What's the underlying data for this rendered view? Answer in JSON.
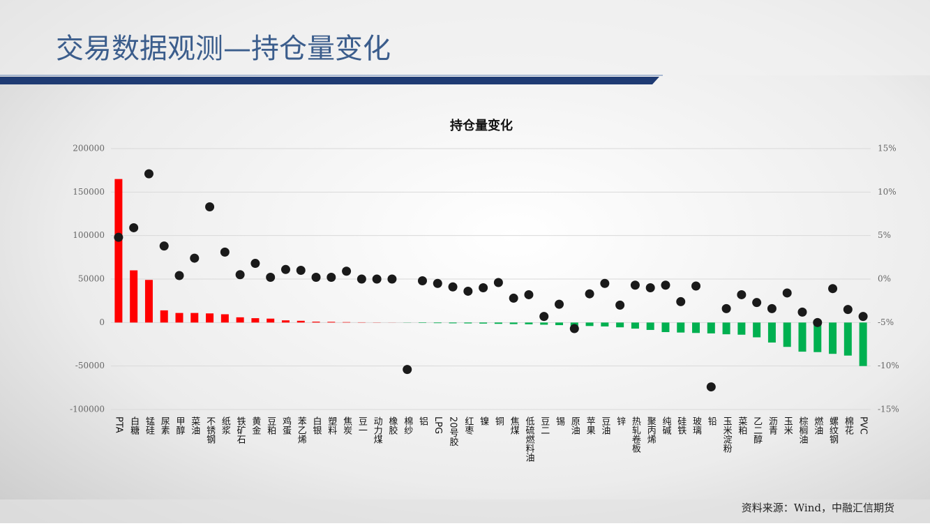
{
  "slide_title": "交易数据观测—持仓量变化",
  "source": "资料来源：Wind，中融汇信期货",
  "chart_data": {
    "type": "bar",
    "title": "持仓量变化",
    "categories": [
      "PTA",
      "白糖",
      "锰硅",
      "尿素",
      "甲醇",
      "菜油",
      "不锈钢",
      "纸浆",
      "铁矿石",
      "黄金",
      "豆粕",
      "鸡蛋",
      "苯乙烯",
      "白银",
      "塑料",
      "焦炭",
      "豆一",
      "动力煤",
      "橡胶",
      "棉纱",
      "铝",
      "LPG",
      "20号胶",
      "红枣",
      "镍",
      "铜",
      "焦煤",
      "低硫燃料油",
      "豆二",
      "锡",
      "原油",
      "苹果",
      "豆油",
      "锌",
      "热轧卷板",
      "聚丙烯",
      "纯碱",
      "硅铁",
      "玻璃",
      "铅",
      "玉米淀粉",
      "菜粕",
      "乙二醇",
      "沥青",
      "玉米",
      "棕榈油",
      "燃油",
      "螺纹钢",
      "棉花",
      "PVC"
    ],
    "series": [
      {
        "type": "bar",
        "positive_color": "#ff0000",
        "negative_color": "#00b050",
        "values": [
          165000,
          60000,
          49000,
          14000,
          11000,
          11000,
          10500,
          9500,
          6000,
          5000,
          4500,
          2500,
          2000,
          1000,
          800,
          500,
          300,
          200,
          100,
          -200,
          -500,
          -700,
          -900,
          -1000,
          -1200,
          -1500,
          -1800,
          -2000,
          -2500,
          -3000,
          -4000,
          -4000,
          -4500,
          -5500,
          -7000,
          -8500,
          -11000,
          -11500,
          -12000,
          -12500,
          -13500,
          -14000,
          -17000,
          -23000,
          -28000,
          -33500,
          -34000,
          -36000,
          -38000,
          -50000
        ]
      },
      {
        "type": "scatter",
        "axis": "y2",
        "color": "#1a1a1a",
        "values": [
          4.8,
          5.9,
          12.1,
          3.8,
          0.4,
          2.4,
          8.3,
          3.1,
          0.5,
          1.8,
          0.2,
          1.1,
          1.0,
          0.2,
          0.2,
          0.9,
          0,
          0,
          0,
          -10.4,
          -0.2,
          -0.5,
          -0.9,
          -1.4,
          -1.0,
          -0.4,
          -2.2,
          -1.8,
          -4.3,
          -2.9,
          -5.7,
          -1.7,
          -0.5,
          -3.0,
          -0.7,
          -1.0,
          -0.7,
          -2.6,
          -0.8,
          -12.4,
          -3.4,
          -1.8,
          -2.7,
          -3.4,
          -1.6,
          -3.8,
          -5.0,
          -1.1,
          -3.5,
          -4.3
        ]
      }
    ],
    "ylim": [
      -100000,
      200000
    ],
    "yticks": [
      -100000,
      -50000,
      0,
      50000,
      100000,
      150000,
      200000
    ],
    "y2lim": [
      -15,
      15
    ],
    "y2ticks": [
      {
        "value": -15,
        "label": "-15%"
      },
      {
        "value": -10,
        "label": "-10%"
      },
      {
        "value": -5,
        "label": "-5%"
      },
      {
        "value": 0,
        "label": "0%"
      },
      {
        "value": 5,
        "label": "5%"
      },
      {
        "value": 10,
        "label": "10%"
      },
      {
        "value": 15,
        "label": "15%"
      }
    ],
    "grid": true
  }
}
